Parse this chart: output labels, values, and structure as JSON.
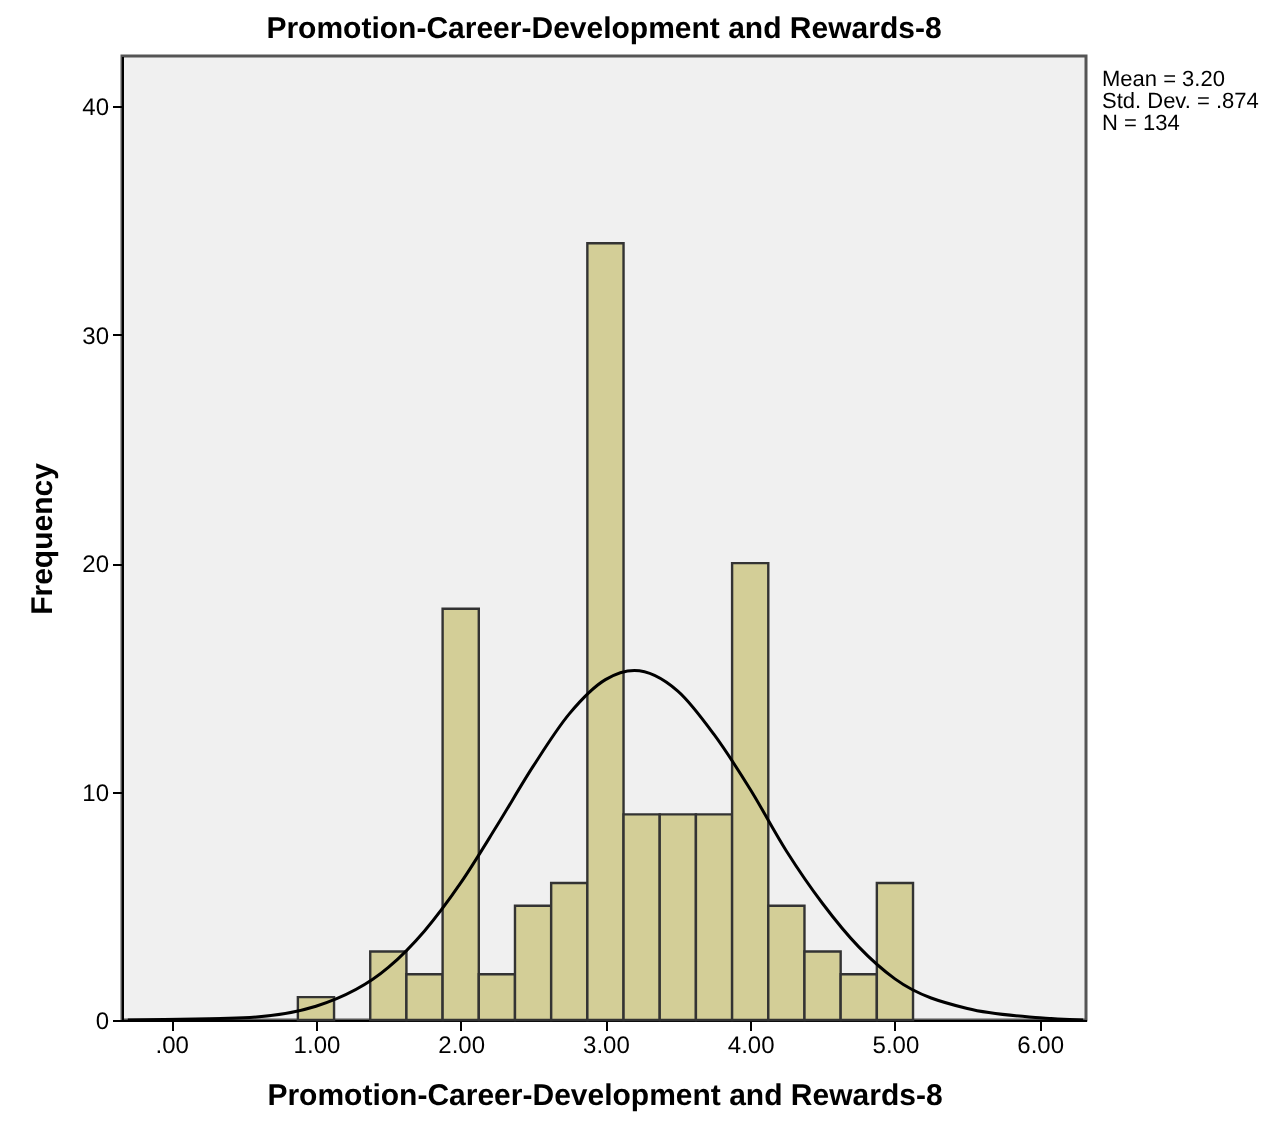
{
  "chart_data": {
    "type": "histogram",
    "title": "Promotion-Career-Development and Rewards-8",
    "xlabel": "Promotion-Career-Development and Rewards-8",
    "ylabel": "Frequency",
    "bins": [
      0.875,
      1.125,
      1.375,
      1.625,
      1.875,
      2.125,
      2.375,
      2.625,
      2.875,
      3.125,
      3.375,
      3.625,
      3.875,
      4.125,
      4.375,
      4.625,
      4.875,
      5.125
    ],
    "series": [
      {
        "type": "histogram",
        "color": "#d3ce97",
        "values": [
          1,
          0,
          3,
          2,
          18,
          2,
          5,
          6,
          34,
          9,
          9,
          9,
          20,
          5,
          3,
          2,
          6
        ]
      },
      {
        "type": "line",
        "color": "#000000",
        "x": [
          -0.3,
          0.5,
          1.0,
          1.5,
          1.75,
          2.0,
          2.25,
          2.5,
          2.75,
          3.0,
          3.2,
          3.5,
          3.75,
          4.0,
          4.25,
          4.5,
          4.75,
          5.0,
          5.5,
          6.0,
          6.3
        ],
        "values": [
          0.0,
          0.1,
          0.6,
          2.3,
          3.9,
          6.0,
          8.5,
          11.1,
          13.4,
          14.9,
          15.3,
          14.4,
          12.5,
          10.1,
          7.4,
          5.1,
          3.2,
          1.8,
          0.5,
          0.1,
          0.0
        ]
      }
    ],
    "xlim": [
      -0.34,
      6.32
    ],
    "ylim": [
      0,
      42.2
    ],
    "xticks": [
      {
        "value": 0,
        "label": ".00"
      },
      {
        "value": 1,
        "label": "1.00"
      },
      {
        "value": 2,
        "label": "2.00"
      },
      {
        "value": 3,
        "label": "3.00"
      },
      {
        "value": 4,
        "label": "4.00"
      },
      {
        "value": 5,
        "label": "5.00"
      },
      {
        "value": 6,
        "label": "6.00"
      }
    ],
    "yticks": [
      0,
      10,
      20,
      30,
      40
    ],
    "annotations": [
      "Mean = 3.20",
      "Std. Dev. = .874",
      "N = 134"
    ]
  }
}
